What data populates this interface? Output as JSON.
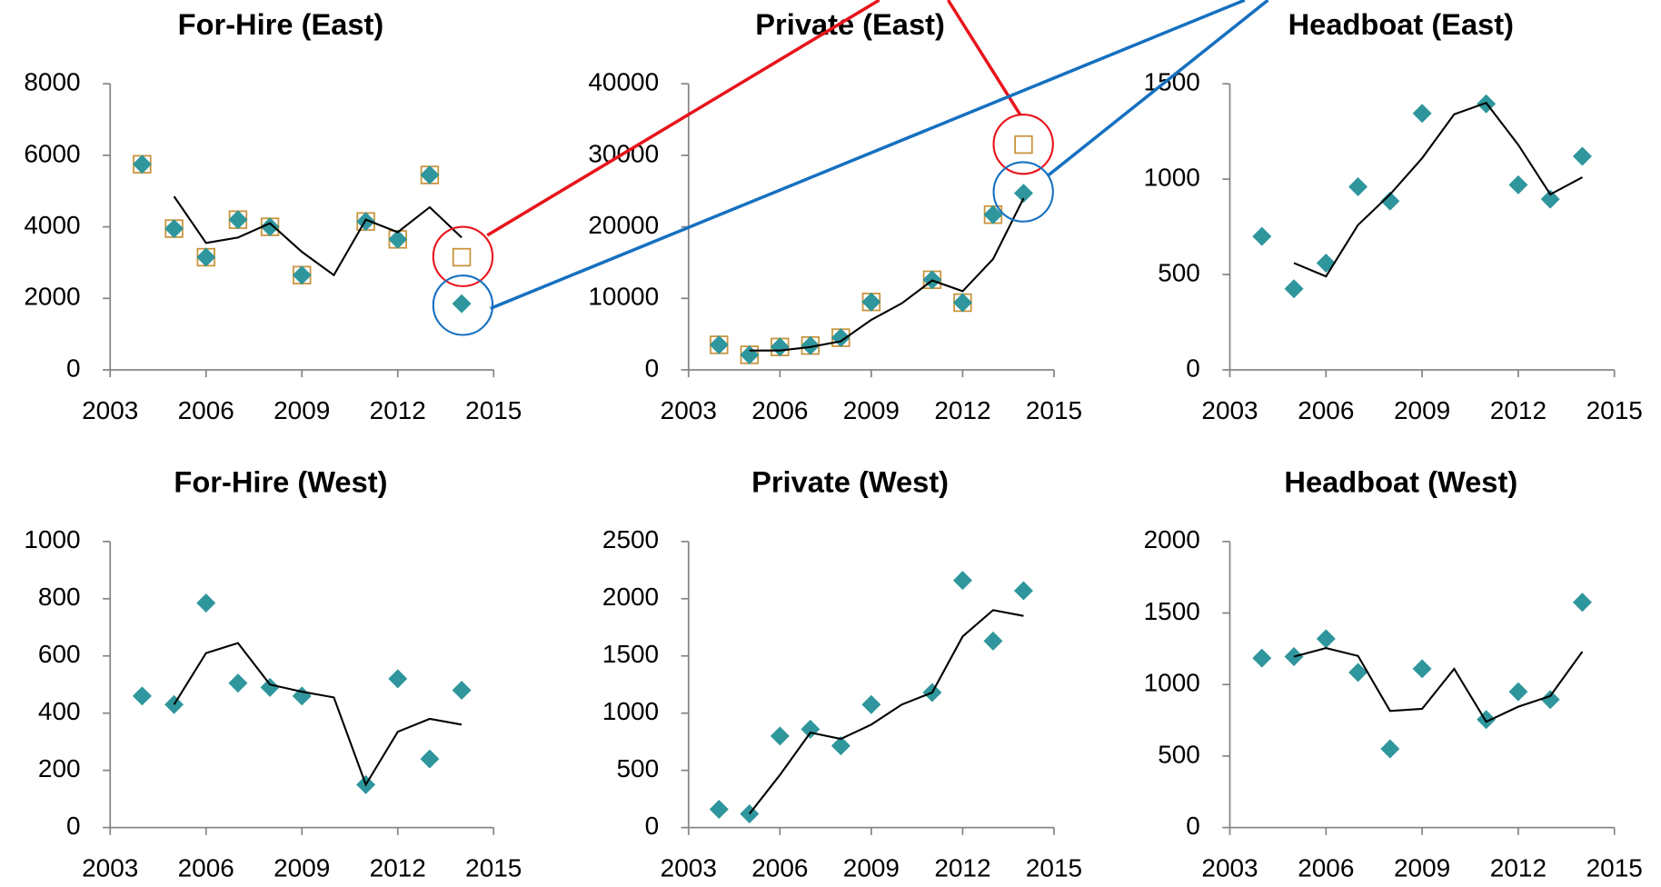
{
  "chart_data": [
    {
      "type": "scatter",
      "title": "For-Hire (East)",
      "x": [
        2004,
        2005,
        2006,
        2007,
        2008,
        2009,
        2010,
        2011,
        2012,
        2013,
        2014
      ],
      "series": [
        {
          "marker": "square-open",
          "color": "#c8923a",
          "values": [
            5750,
            3950,
            3150,
            4200,
            4000,
            2650,
            null,
            4150,
            3650,
            5450,
            3150
          ]
        },
        {
          "marker": "diamond",
          "color": "#2e969c",
          "values": [
            5750,
            3950,
            3150,
            4200,
            4000,
            2650,
            null,
            4150,
            3650,
            5450,
            1850
          ]
        },
        {
          "marker": "line",
          "color": "#000000",
          "values": [
            null,
            4850,
            3550,
            3700,
            4100,
            3300,
            2650,
            4200,
            3850,
            4550,
            3700
          ]
        }
      ],
      "xlim": [
        2003,
        2015
      ],
      "xticks": [
        2003,
        2006,
        2009,
        2012,
        2015
      ],
      "ylim": [
        0,
        8000
      ],
      "yticks": [
        0,
        2000,
        4000,
        6000,
        8000
      ]
    },
    {
      "type": "scatter",
      "title": "Private (East)",
      "x": [
        2004,
        2005,
        2006,
        2007,
        2008,
        2009,
        2010,
        2011,
        2012,
        2013,
        2014
      ],
      "series": [
        {
          "marker": "square-open",
          "color": "#c8923a",
          "values": [
            3500,
            2100,
            3200,
            3400,
            4500,
            9500,
            null,
            12600,
            9400,
            21700,
            31500
          ]
        },
        {
          "marker": "diamond",
          "color": "#2e969c",
          "values": [
            3500,
            2100,
            3200,
            3400,
            4500,
            9500,
            null,
            12600,
            9400,
            21700,
            24700
          ]
        },
        {
          "marker": "line",
          "color": "#000000",
          "values": [
            null,
            2700,
            2700,
            3200,
            4000,
            7000,
            9300,
            12500,
            11000,
            15500,
            24000
          ]
        }
      ],
      "xlim": [
        2003,
        2015
      ],
      "xticks": [
        2003,
        2006,
        2009,
        2012,
        2015
      ],
      "ylim": [
        0,
        40000
      ],
      "yticks": [
        0,
        10000,
        20000,
        30000,
        40000
      ]
    },
    {
      "type": "scatter",
      "title": "Headboat (East)",
      "x": [
        2004,
        2005,
        2006,
        2007,
        2008,
        2009,
        2010,
        2011,
        2012,
        2013,
        2014
      ],
      "series": [
        {
          "marker": "diamond",
          "color": "#2e969c",
          "values": [
            700,
            425,
            560,
            960,
            885,
            1345,
            null,
            1395,
            970,
            895,
            1120
          ]
        },
        {
          "marker": "line",
          "color": "#000000",
          "values": [
            null,
            560,
            490,
            760,
            920,
            1110,
            1340,
            1400,
            1180,
            920,
            1010
          ]
        }
      ],
      "xlim": [
        2003,
        2015
      ],
      "xticks": [
        2003,
        2006,
        2009,
        2012,
        2015
      ],
      "ylim": [
        0,
        1500
      ],
      "yticks": [
        0,
        500,
        1000,
        1500
      ]
    },
    {
      "type": "scatter",
      "title": "For-Hire (West)",
      "x": [
        2004,
        2005,
        2006,
        2007,
        2008,
        2009,
        2010,
        2011,
        2012,
        2013,
        2014
      ],
      "series": [
        {
          "marker": "diamond",
          "color": "#2e969c",
          "values": [
            460,
            430,
            785,
            505,
            490,
            460,
            null,
            150,
            520,
            240,
            480
          ]
        },
        {
          "marker": "line",
          "color": "#000000",
          "values": [
            null,
            430,
            610,
            645,
            500,
            475,
            455,
            150,
            335,
            380,
            360
          ]
        }
      ],
      "xlim": [
        2003,
        2015
      ],
      "xticks": [
        2003,
        2006,
        2009,
        2012,
        2015
      ],
      "ylim": [
        0,
        1000
      ],
      "yticks": [
        0,
        200,
        400,
        600,
        800,
        1000
      ]
    },
    {
      "type": "scatter",
      "title": "Private (West)",
      "x": [
        2004,
        2005,
        2006,
        2007,
        2008,
        2009,
        2010,
        2011,
        2012,
        2013,
        2014
      ],
      "series": [
        {
          "marker": "diamond",
          "color": "#2e969c",
          "values": [
            160,
            120,
            800,
            860,
            715,
            1075,
            null,
            1180,
            2160,
            1630,
            2070
          ]
        },
        {
          "marker": "line",
          "color": "#000000",
          "values": [
            null,
            120,
            460,
            830,
            775,
            900,
            1075,
            1180,
            1670,
            1900,
            1850
          ]
        }
      ],
      "xlim": [
        2003,
        2015
      ],
      "xticks": [
        2003,
        2006,
        2009,
        2012,
        2015
      ],
      "ylim": [
        0,
        2500
      ],
      "yticks": [
        0,
        500,
        1000,
        1500,
        2000,
        2500
      ]
    },
    {
      "type": "scatter",
      "title": "Headboat (West)",
      "x": [
        2004,
        2005,
        2006,
        2007,
        2008,
        2009,
        2010,
        2011,
        2012,
        2013,
        2014
      ],
      "series": [
        {
          "marker": "diamond",
          "color": "#2e969c",
          "values": [
            1185,
            1195,
            1320,
            1085,
            550,
            1110,
            null,
            755,
            950,
            895,
            1575
          ]
        },
        {
          "marker": "line",
          "color": "#000000",
          "values": [
            null,
            1195,
            1255,
            1200,
            815,
            830,
            1110,
            740,
            845,
            920,
            1230
          ]
        }
      ],
      "xlim": [
        2003,
        2015
      ],
      "xticks": [
        2003,
        2006,
        2009,
        2012,
        2015
      ],
      "ylim": [
        0,
        2000
      ],
      "yticks": [
        0,
        500,
        1000,
        1500,
        2000
      ]
    }
  ]
}
